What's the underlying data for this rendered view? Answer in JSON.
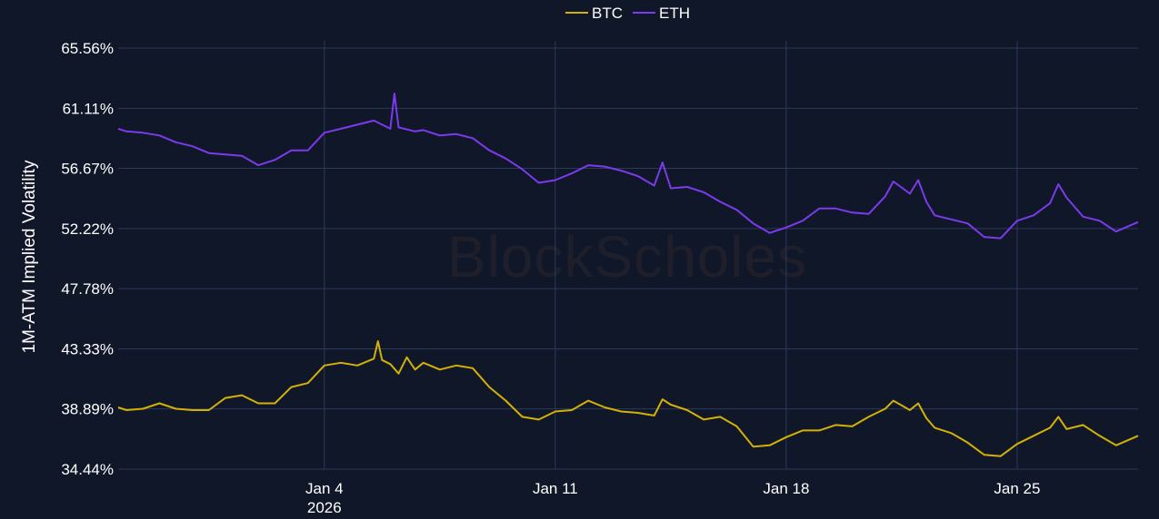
{
  "chart_data": {
    "type": "line",
    "title": "",
    "xlabel": "",
    "ylabel": "1M-ATM Implied Volatility",
    "watermark": "BlockScholes",
    "legend_position": "top-center",
    "grid": true,
    "x_tick_labels": [
      {
        "date": "2026-01-04",
        "label": "Jan 4",
        "sublabel": "2026"
      },
      {
        "date": "2026-01-11",
        "label": "Jan 11",
        "sublabel": ""
      },
      {
        "date": "2026-01-18",
        "label": "Jan 18",
        "sublabel": ""
      },
      {
        "date": "2026-01-25",
        "label": "Jan 25",
        "sublabel": ""
      }
    ],
    "xlim": [
      "2025-12-28T18:00",
      "2026-01-28T16:00"
    ],
    "y_ticks": [
      34.44,
      38.89,
      43.33,
      47.78,
      52.22,
      56.67,
      61.11,
      65.56
    ],
    "y_tick_labels": [
      "34.44%",
      "38.89%",
      "43.33%",
      "47.78%",
      "52.22%",
      "56.67%",
      "61.11%",
      "65.56%"
    ],
    "ylim": [
      34.44,
      65.56
    ],
    "series": [
      {
        "name": "BTC",
        "color": "#d4b106",
        "points": [
          [
            "2025-12-28T18:00",
            39.0
          ],
          [
            "2025-12-29T00:00",
            38.8
          ],
          [
            "2025-12-29T12:00",
            38.9
          ],
          [
            "2025-12-30T00:00",
            39.3
          ],
          [
            "2025-12-30T12:00",
            38.9
          ],
          [
            "2025-12-31T00:00",
            38.8
          ],
          [
            "2025-12-31T12:00",
            38.8
          ],
          [
            "2026-01-01T00:00",
            39.7
          ],
          [
            "2026-01-01T12:00",
            39.9
          ],
          [
            "2026-01-02T00:00",
            39.3
          ],
          [
            "2026-01-02T12:00",
            39.3
          ],
          [
            "2026-01-03T00:00",
            40.5
          ],
          [
            "2026-01-03T12:00",
            40.8
          ],
          [
            "2026-01-04T00:00",
            42.1
          ],
          [
            "2026-01-04T12:00",
            42.3
          ],
          [
            "2026-01-05T00:00",
            42.1
          ],
          [
            "2026-01-05T12:00",
            42.6
          ],
          [
            "2026-01-05T15:00",
            43.9
          ],
          [
            "2026-01-05T18:00",
            42.5
          ],
          [
            "2026-01-06T00:00",
            42.2
          ],
          [
            "2026-01-06T06:00",
            41.5
          ],
          [
            "2026-01-06T12:00",
            42.7
          ],
          [
            "2026-01-06T18:00",
            41.8
          ],
          [
            "2026-01-07T00:00",
            42.3
          ],
          [
            "2026-01-07T12:00",
            41.8
          ],
          [
            "2026-01-08T00:00",
            42.1
          ],
          [
            "2026-01-08T12:00",
            41.9
          ],
          [
            "2026-01-09T00:00",
            40.5
          ],
          [
            "2026-01-09T12:00",
            39.5
          ],
          [
            "2026-01-10T00:00",
            38.3
          ],
          [
            "2026-01-10T12:00",
            38.1
          ],
          [
            "2026-01-11T00:00",
            38.7
          ],
          [
            "2026-01-11T12:00",
            38.8
          ],
          [
            "2026-01-12T00:00",
            39.5
          ],
          [
            "2026-01-12T12:00",
            39.0
          ],
          [
            "2026-01-13T00:00",
            38.7
          ],
          [
            "2026-01-13T12:00",
            38.6
          ],
          [
            "2026-01-14T00:00",
            38.4
          ],
          [
            "2026-01-14T06:00",
            39.6
          ],
          [
            "2026-01-14T12:00",
            39.2
          ],
          [
            "2026-01-15T00:00",
            38.8
          ],
          [
            "2026-01-15T12:00",
            38.1
          ],
          [
            "2026-01-16T00:00",
            38.3
          ],
          [
            "2026-01-16T12:00",
            37.6
          ],
          [
            "2026-01-17T00:00",
            36.1
          ],
          [
            "2026-01-17T12:00",
            36.2
          ],
          [
            "2026-01-18T00:00",
            36.8
          ],
          [
            "2026-01-18T12:00",
            37.3
          ],
          [
            "2026-01-19T00:00",
            37.3
          ],
          [
            "2026-01-19T12:00",
            37.7
          ],
          [
            "2026-01-20T00:00",
            37.6
          ],
          [
            "2026-01-20T12:00",
            38.3
          ],
          [
            "2026-01-21T00:00",
            38.9
          ],
          [
            "2026-01-21T06:00",
            39.5
          ],
          [
            "2026-01-21T18:00",
            38.8
          ],
          [
            "2026-01-22T00:00",
            39.3
          ],
          [
            "2026-01-22T06:00",
            38.2
          ],
          [
            "2026-01-22T12:00",
            37.5
          ],
          [
            "2026-01-23T00:00",
            37.1
          ],
          [
            "2026-01-23T12:00",
            36.4
          ],
          [
            "2026-01-24T00:00",
            35.5
          ],
          [
            "2026-01-24T12:00",
            35.4
          ],
          [
            "2026-01-25T00:00",
            36.3
          ],
          [
            "2026-01-25T12:00",
            36.9
          ],
          [
            "2026-01-26T00:00",
            37.5
          ],
          [
            "2026-01-26T06:00",
            38.3
          ],
          [
            "2026-01-26T12:00",
            37.4
          ],
          [
            "2026-01-27T00:00",
            37.7
          ],
          [
            "2026-01-27T12:00",
            36.9
          ],
          [
            "2026-01-28T00:00",
            36.2
          ],
          [
            "2026-01-28T16:00",
            36.9
          ]
        ]
      },
      {
        "name": "ETH",
        "color": "#7c3aed",
        "points": [
          [
            "2025-12-28T18:00",
            59.6
          ],
          [
            "2025-12-29T00:00",
            59.4
          ],
          [
            "2025-12-29T12:00",
            59.3
          ],
          [
            "2025-12-30T00:00",
            59.1
          ],
          [
            "2025-12-30T12:00",
            58.6
          ],
          [
            "2025-12-31T00:00",
            58.3
          ],
          [
            "2025-12-31T12:00",
            57.8
          ],
          [
            "2026-01-01T00:00",
            57.7
          ],
          [
            "2026-01-01T12:00",
            57.6
          ],
          [
            "2026-01-02T00:00",
            56.9
          ],
          [
            "2026-01-02T12:00",
            57.3
          ],
          [
            "2026-01-03T00:00",
            58.0
          ],
          [
            "2026-01-03T12:00",
            58.0
          ],
          [
            "2026-01-04T00:00",
            59.3
          ],
          [
            "2026-01-04T12:00",
            59.6
          ],
          [
            "2026-01-05T00:00",
            59.9
          ],
          [
            "2026-01-05T12:00",
            60.2
          ],
          [
            "2026-01-06T00:00",
            59.6
          ],
          [
            "2026-01-06T03:00",
            62.2
          ],
          [
            "2026-01-06T06:00",
            59.7
          ],
          [
            "2026-01-06T18:00",
            59.4
          ],
          [
            "2026-01-07T00:00",
            59.5
          ],
          [
            "2026-01-07T12:00",
            59.1
          ],
          [
            "2026-01-08T00:00",
            59.2
          ],
          [
            "2026-01-08T12:00",
            58.9
          ],
          [
            "2026-01-09T00:00",
            58.0
          ],
          [
            "2026-01-09T12:00",
            57.4
          ],
          [
            "2026-01-10T00:00",
            56.6
          ],
          [
            "2026-01-10T12:00",
            55.6
          ],
          [
            "2026-01-11T00:00",
            55.8
          ],
          [
            "2026-01-11T12:00",
            56.3
          ],
          [
            "2026-01-12T00:00",
            56.9
          ],
          [
            "2026-01-12T12:00",
            56.8
          ],
          [
            "2026-01-13T00:00",
            56.5
          ],
          [
            "2026-01-13T12:00",
            56.1
          ],
          [
            "2026-01-14T00:00",
            55.4
          ],
          [
            "2026-01-14T06:00",
            57.1
          ],
          [
            "2026-01-14T12:00",
            55.2
          ],
          [
            "2026-01-15T00:00",
            55.3
          ],
          [
            "2026-01-15T12:00",
            54.9
          ],
          [
            "2026-01-16T00:00",
            54.2
          ],
          [
            "2026-01-16T12:00",
            53.6
          ],
          [
            "2026-01-17T00:00",
            52.6
          ],
          [
            "2026-01-17T12:00",
            51.9
          ],
          [
            "2026-01-18T00:00",
            52.3
          ],
          [
            "2026-01-18T12:00",
            52.8
          ],
          [
            "2026-01-19T00:00",
            53.7
          ],
          [
            "2026-01-19T12:00",
            53.7
          ],
          [
            "2026-01-20T00:00",
            53.4
          ],
          [
            "2026-01-20T12:00",
            53.3
          ],
          [
            "2026-01-21T00:00",
            54.6
          ],
          [
            "2026-01-21T06:00",
            55.7
          ],
          [
            "2026-01-21T18:00",
            54.8
          ],
          [
            "2026-01-22T00:00",
            55.8
          ],
          [
            "2026-01-22T06:00",
            54.2
          ],
          [
            "2026-01-22T12:00",
            53.2
          ],
          [
            "2026-01-23T00:00",
            52.9
          ],
          [
            "2026-01-23T12:00",
            52.6
          ],
          [
            "2026-01-24T00:00",
            51.6
          ],
          [
            "2026-01-24T12:00",
            51.5
          ],
          [
            "2026-01-25T00:00",
            52.8
          ],
          [
            "2026-01-25T12:00",
            53.2
          ],
          [
            "2026-01-26T00:00",
            54.1
          ],
          [
            "2026-01-26T06:00",
            55.5
          ],
          [
            "2026-01-26T12:00",
            54.5
          ],
          [
            "2026-01-27T00:00",
            53.1
          ],
          [
            "2026-01-27T12:00",
            52.8
          ],
          [
            "2026-01-28T00:00",
            52.0
          ],
          [
            "2026-01-28T16:00",
            52.7
          ]
        ]
      }
    ]
  }
}
